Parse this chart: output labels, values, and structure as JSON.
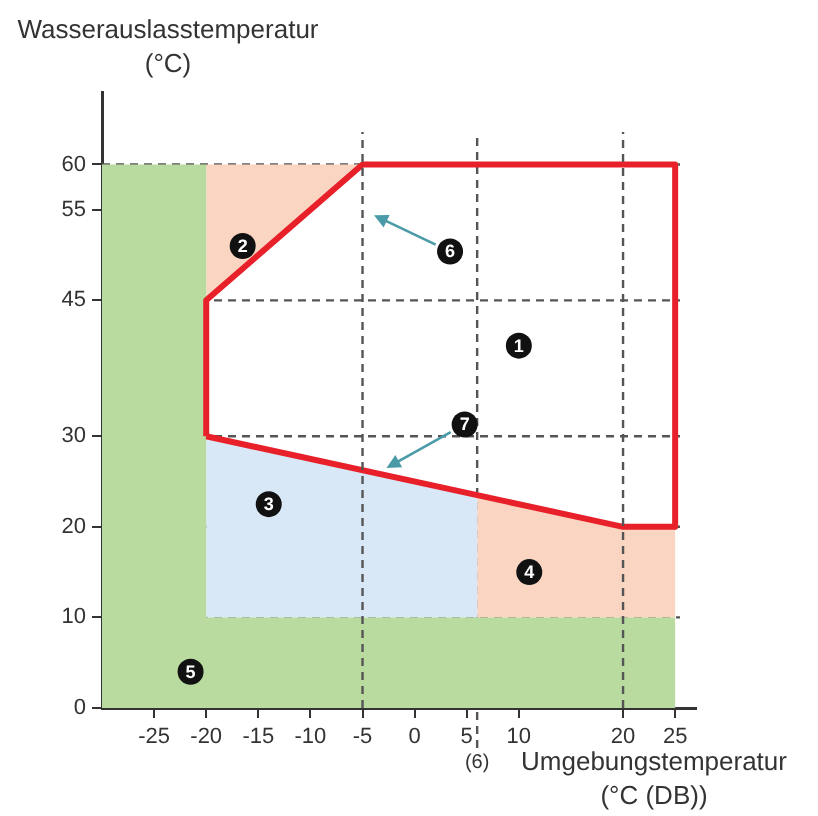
{
  "chart_data": {
    "type": "area",
    "xlabel": "Umgebungstemperatur\n(°C (DB))",
    "ylabel": "Wasserauslasstemperatur\n(°C)",
    "xlim": [
      -30,
      27
    ],
    "xticks": [
      -25,
      -20,
      -15,
      -10,
      -5,
      0,
      5,
      10,
      20,
      25
    ],
    "ylim": [
      0,
      68
    ],
    "yticks": [
      0,
      10,
      20,
      30,
      45,
      55,
      60
    ],
    "grid": false,
    "legend": false,
    "series": [
      {
        "color": "#b9dba0",
        "x": [
          -30,
          -30,
          -20,
          -20,
          25,
          25
        ],
        "values": [
          0,
          60,
          60,
          10,
          10,
          0
        ]
      },
      {
        "color": "#fad6c2",
        "x": [
          -20,
          -20,
          -5
        ],
        "values": [
          45,
          60,
          60
        ]
      },
      {
        "color": "#d9e8f6",
        "x": [
          -20,
          -20,
          6,
          6
        ],
        "values": [
          10,
          30,
          23.5,
          10
        ]
      },
      {
        "color": "#fad6c2",
        "x": [
          6,
          6,
          20,
          25,
          25
        ],
        "values": [
          10,
          23.5,
          20,
          20,
          10
        ]
      },
      {
        "type": "line",
        "color": "#e8202a",
        "x": [
          -20,
          -20,
          -5,
          25,
          25
        ],
        "values": [
          30,
          45,
          60,
          60,
          20
        ]
      },
      {
        "type": "line",
        "color": "#e8202a",
        "x": [
          -20,
          20,
          25
        ],
        "values": [
          30,
          20,
          20
        ]
      }
    ],
    "ref_lines": [
      {
        "axis": "x",
        "value": -5,
        "color": "#555555",
        "line_style": "dashed"
      },
      {
        "axis": "x",
        "value": 6,
        "label": "(6)",
        "color": "#555555",
        "line_style": "dashed"
      },
      {
        "axis": "x",
        "value": 20,
        "color": "#555555",
        "line_style": "dashed"
      },
      {
        "axis": "y",
        "value": 60,
        "color": "#555555",
        "line_style": "dashed"
      },
      {
        "axis": "y",
        "value": 45,
        "color": "#555555",
        "line_style": "dashed"
      },
      {
        "axis": "y",
        "value": 30,
        "color": "#555555",
        "line_style": "dashed"
      },
      {
        "axis": "y",
        "value": 20,
        "color": "#555555",
        "line_style": "dashed"
      },
      {
        "axis": "y",
        "value": 10,
        "color": "#555555",
        "line_style": "dashed"
      }
    ],
    "annotations": [
      {
        "text": "1",
        "x": 10,
        "y": 40
      },
      {
        "text": "2",
        "x": -16.5,
        "y": 51
      },
      {
        "text": "3",
        "x": -14,
        "y": 22.5
      },
      {
        "text": "4",
        "x": 11,
        "y": 15
      },
      {
        "text": "5",
        "x": -21.5,
        "y": 4
      },
      {
        "text": "6",
        "x": 3.4,
        "y": 50.4
      },
      {
        "text": "7",
        "x": 4.8,
        "y": 31.3
      }
    ]
  }
}
